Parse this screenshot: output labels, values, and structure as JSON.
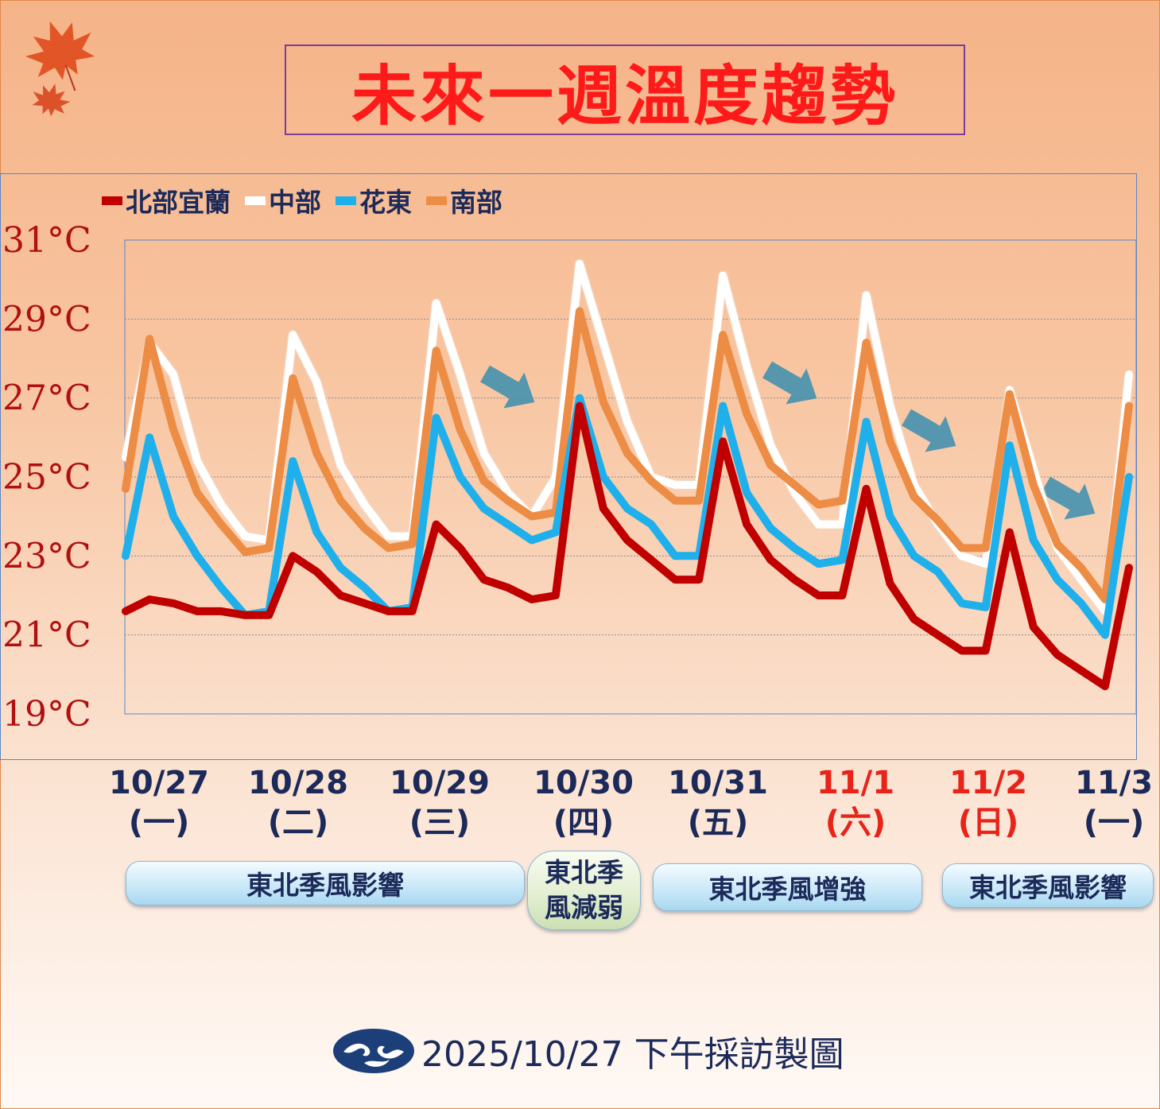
{
  "title": "未來一週溫度趨勢",
  "legend": [
    {
      "name": "北部宜蘭",
      "color": "#c00000"
    },
    {
      "name": "中部",
      "color": "#ffffff"
    },
    {
      "name": "花東",
      "color": "#1fb0ec"
    },
    {
      "name": "南部",
      "color": "#ed8c44"
    }
  ],
  "dates": [
    {
      "date": "10/27",
      "weekday": "(一)",
      "color": "#1c2a5a"
    },
    {
      "date": "10/28",
      "weekday": "(二)",
      "color": "#1c2a5a"
    },
    {
      "date": "10/29",
      "weekday": "(三)",
      "color": "#1c2a5a"
    },
    {
      "date": "10/30",
      "weekday": "(四)",
      "color": "#1c2a5a"
    },
    {
      "date": "10/31",
      "weekday": "(五)",
      "color": "#1c2a5a"
    },
    {
      "date": "11/1",
      "weekday": "(六)",
      "color": "#e8231a"
    },
    {
      "date": "11/2",
      "weekday": "(日)",
      "color": "#e8231a"
    },
    {
      "date": "11/3",
      "weekday": "(一)",
      "color": "#1c2a5a"
    }
  ],
  "phases": [
    "東北季風影響",
    "東北季風減弱",
    "東北季風增強",
    "東北季風影響"
  ],
  "phases_display": [
    "東北季風影響",
    "東北季\n風減弱",
    "東北季風增強",
    "東北季風影響"
  ],
  "footer": "2025/10/27 下午採訪製圖",
  "chart_data": {
    "type": "line",
    "yticks": [
      "31°C",
      "29°C",
      "27°C",
      "25°C",
      "23°C",
      "21°C",
      "19°C"
    ],
    "ylim": [
      19,
      31
    ],
    "x": [
      0,
      0.1667,
      0.3333,
      0.5,
      0.6667,
      0.8333,
      1,
      1.1667,
      1.3333,
      1.5,
      1.6667,
      1.8333,
      2,
      2.1667,
      2.3333,
      2.5,
      2.6667,
      2.8333,
      3,
      3.1667,
      3.3333,
      3.5,
      3.6667,
      3.8333,
      4,
      4.1667,
      4.3333,
      4.5,
      4.6667,
      4.8333,
      5,
      5.1667,
      5.3333,
      5.5,
      5.6667,
      5.8333,
      6,
      6.1667,
      6.3333,
      6.5,
      6.6667,
      6.8333,
      7
    ],
    "x_note": "days from 10/27",
    "series": [
      {
        "name": "中部",
        "color": "#ffffff",
        "values": [
          25.5,
          28.4,
          27.6,
          25.4,
          24.3,
          23.5,
          23.4,
          28.6,
          27.4,
          25.3,
          24.3,
          23.5,
          23.5,
          29.4,
          27.6,
          25.6,
          24.6,
          24.0,
          25.0,
          30.4,
          28.4,
          26.4,
          25.0,
          24.8,
          24.8,
          30.1,
          27.8,
          25.8,
          24.6,
          23.8,
          23.8,
          29.6,
          26.8,
          24.8,
          23.8,
          23.0,
          22.8,
          27.2,
          25.2,
          23.2,
          22.4,
          21.6,
          27.6
        ]
      },
      {
        "name": "南部",
        "color": "#ed8c44",
        "values": [
          24.7,
          28.5,
          26.2,
          24.6,
          23.8,
          23.1,
          23.2,
          27.5,
          25.6,
          24.4,
          23.7,
          23.2,
          23.3,
          28.2,
          26.2,
          24.9,
          24.4,
          24.0,
          24.1,
          29.2,
          26.9,
          25.6,
          24.9,
          24.4,
          24.4,
          28.6,
          26.6,
          25.3,
          24.8,
          24.3,
          24.4,
          28.4,
          25.9,
          24.5,
          23.9,
          23.2,
          23.2,
          27.1,
          24.8,
          23.3,
          22.7,
          21.9,
          26.8
        ]
      },
      {
        "name": "花東",
        "color": "#1fb0ec",
        "values": [
          23.0,
          26.0,
          24.0,
          23.0,
          22.2,
          21.5,
          21.6,
          25.4,
          23.6,
          22.7,
          22.2,
          21.6,
          21.7,
          26.5,
          25.0,
          24.2,
          23.8,
          23.4,
          23.6,
          27.0,
          25.0,
          24.2,
          23.8,
          23.0,
          23.0,
          26.8,
          24.6,
          23.7,
          23.2,
          22.8,
          22.9,
          26.4,
          24.0,
          23.0,
          22.6,
          21.8,
          21.7,
          25.8,
          23.4,
          22.4,
          21.8,
          21.0,
          25.0
        ]
      },
      {
        "name": "北部宜蘭",
        "color": "#c00000",
        "values": [
          21.6,
          21.9,
          21.8,
          21.6,
          21.6,
          21.5,
          21.5,
          23.0,
          22.6,
          22.0,
          21.8,
          21.6,
          21.6,
          23.8,
          23.2,
          22.4,
          22.2,
          21.9,
          22.0,
          26.8,
          24.2,
          23.4,
          22.9,
          22.4,
          22.4,
          25.9,
          23.8,
          22.9,
          22.4,
          22.0,
          22.0,
          24.7,
          22.3,
          21.4,
          21.0,
          20.6,
          20.6,
          23.6,
          21.2,
          20.5,
          20.1,
          19.7,
          22.7
        ]
      }
    ],
    "arrows": 4,
    "grid": true
  }
}
